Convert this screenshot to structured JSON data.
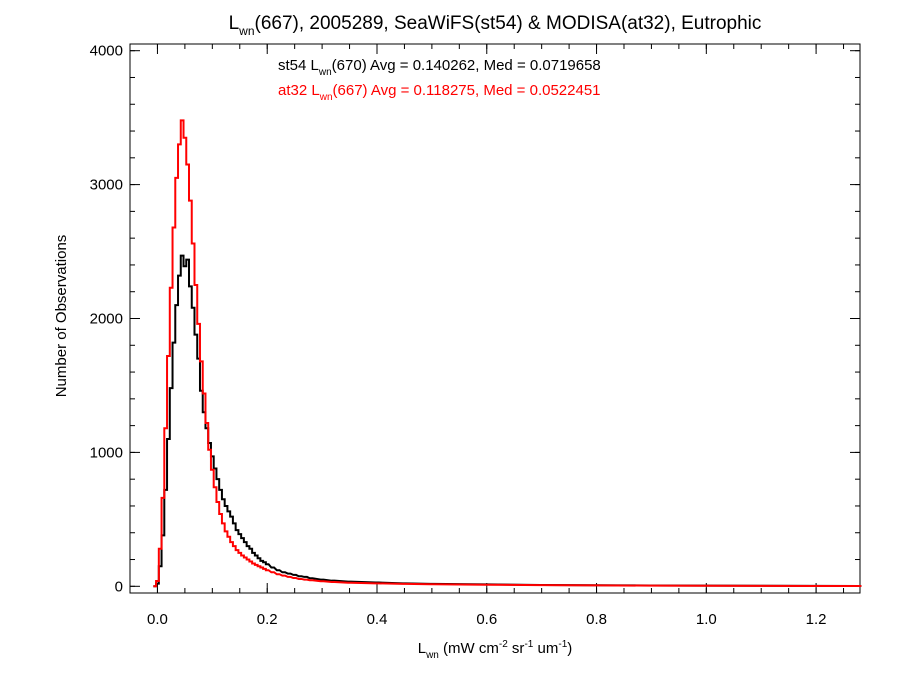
{
  "chart_data": {
    "type": "line",
    "title": {
      "pre": "L",
      "sub": "wn",
      "post": "(667), 2005289, SeaWiFS(st54) & MODISA(at32), Eutrophic"
    },
    "xlabel": {
      "pre": "L",
      "sub": "wn",
      "mid": " (mW cm",
      "sup1": "-2",
      "mid2": " sr",
      "sup2": "-1",
      "mid3": " um",
      "sup3": "-1",
      "post": ")"
    },
    "ylabel": "Number of Observations",
    "xlim": [
      -0.05,
      1.28
    ],
    "ylim": [
      -50,
      4050
    ],
    "xticks": [
      0.0,
      0.2,
      0.4,
      0.6,
      0.8,
      1.0,
      1.2
    ],
    "xtick_labels": [
      "0.0",
      "0.2",
      "0.4",
      "0.6",
      "0.8",
      "1.0",
      "1.2"
    ],
    "yticks": [
      0,
      1000,
      2000,
      3000,
      4000
    ],
    "ytick_labels": [
      "0",
      "1000",
      "2000",
      "3000",
      "4000"
    ],
    "x_minor_step": 0.05,
    "y_minor_step": 200,
    "bin_width": 0.005,
    "grid": false,
    "series": [
      {
        "name": "st54",
        "color": "#000000",
        "annotation": {
          "pre": "st54 L",
          "sub": "wn",
          "post": "(670) Avg = 0.140262, Med = 0.0719658"
        },
        "x": [
          -0.005,
          0,
          0.005,
          0.01,
          0.015,
          0.02,
          0.025,
          0.03,
          0.035,
          0.04,
          0.045,
          0.05,
          0.055,
          0.06,
          0.065,
          0.07,
          0.075,
          0.08,
          0.085,
          0.09,
          0.095,
          0.1,
          0.105,
          0.11,
          0.115,
          0.12,
          0.125,
          0.13,
          0.135,
          0.14,
          0.145,
          0.15,
          0.155,
          0.16,
          0.165,
          0.17,
          0.175,
          0.18,
          0.185,
          0.19,
          0.195,
          0.2,
          0.21,
          0.22,
          0.23,
          0.24,
          0.25,
          0.26,
          0.27,
          0.28,
          0.3,
          0.32,
          0.35,
          0.4,
          0.45,
          0.5,
          0.6,
          0.7,
          0.8,
          0.9,
          1.0,
          1.1,
          1.2,
          1.28
        ],
        "values": [
          0,
          20,
          150,
          380,
          720,
          1100,
          1480,
          1820,
          2100,
          2320,
          2470,
          2390,
          2440,
          2240,
          2080,
          1880,
          1700,
          1460,
          1300,
          1180,
          1070,
          970,
          880,
          800,
          720,
          650,
          600,
          560,
          520,
          470,
          420,
          390,
          360,
          330,
          300,
          280,
          250,
          230,
          210,
          190,
          180,
          165,
          140,
          120,
          105,
          95,
          85,
          75,
          70,
          60,
          50,
          42,
          35,
          28,
          22,
          18,
          14,
          10,
          8,
          6,
          5,
          4,
          3,
          2
        ]
      },
      {
        "name": "at32",
        "color": "#ff0000",
        "annotation": {
          "pre": "at32 L",
          "sub": "wn",
          "post": "(667) Avg = 0.118275, Med = 0.0522451"
        },
        "x": [
          -0.005,
          0,
          0.005,
          0.01,
          0.015,
          0.02,
          0.025,
          0.03,
          0.035,
          0.04,
          0.045,
          0.05,
          0.055,
          0.06,
          0.065,
          0.07,
          0.075,
          0.08,
          0.085,
          0.09,
          0.095,
          0.1,
          0.105,
          0.11,
          0.115,
          0.12,
          0.125,
          0.13,
          0.135,
          0.14,
          0.145,
          0.15,
          0.155,
          0.16,
          0.165,
          0.17,
          0.175,
          0.18,
          0.185,
          0.19,
          0.195,
          0.2,
          0.21,
          0.22,
          0.23,
          0.24,
          0.25,
          0.26,
          0.27,
          0.28,
          0.3,
          0.32,
          0.35,
          0.4,
          0.45,
          0.5,
          0.6,
          0.7,
          0.8,
          0.9,
          1.0,
          1.1,
          1.2,
          1.28
        ],
        "values": [
          0,
          40,
          280,
          660,
          1180,
          1720,
          2230,
          2680,
          3050,
          3300,
          3480,
          3350,
          3150,
          2880,
          2560,
          2250,
          1960,
          1680,
          1440,
          1220,
          1020,
          870,
          740,
          630,
          540,
          470,
          410,
          370,
          330,
          300,
          270,
          250,
          230,
          215,
          200,
          185,
          170,
          160,
          150,
          140,
          130,
          120,
          105,
          90,
          80,
          70,
          62,
          55,
          50,
          45,
          38,
          32,
          27,
          22,
          18,
          15,
          12,
          9,
          7,
          5,
          4,
          3,
          2,
          2
        ]
      }
    ]
  }
}
